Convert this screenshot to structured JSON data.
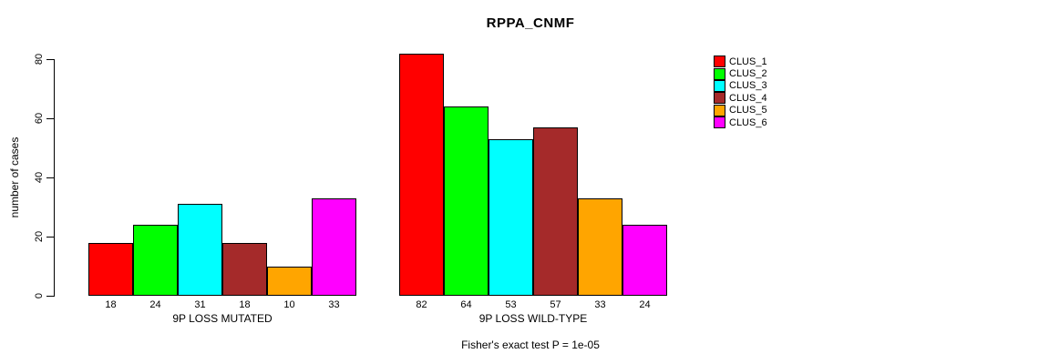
{
  "chart_data": {
    "type": "bar",
    "title": "RPPA_CNMF",
    "ylabel": "number of cases",
    "ylim": [
      0,
      80
    ],
    "yticks": [
      0,
      20,
      40,
      60,
      80
    ],
    "grid": false,
    "legend_position": "right-inside",
    "series": [
      {
        "name": "CLUS_1",
        "color": "#FF0000"
      },
      {
        "name": "CLUS_2",
        "color": "#00FF00"
      },
      {
        "name": "CLUS_3",
        "color": "#00FFFF"
      },
      {
        "name": "CLUS_4",
        "color": "#A52A2A"
      },
      {
        "name": "CLUS_5",
        "color": "#FFA500"
      },
      {
        "name": "CLUS_6",
        "color": "#FF00FF"
      }
    ],
    "groups": [
      {
        "label": "9P LOSS MUTATED",
        "values": [
          18,
          24,
          31,
          18,
          10,
          33
        ]
      },
      {
        "label": "9P LOSS WILD-TYPE",
        "values": [
          82,
          64,
          53,
          57,
          33,
          24
        ]
      }
    ],
    "footnote": "Fisher's exact test P = 1e-05",
    "axis_color": "#000000",
    "background_color": "#FFFFFF"
  }
}
